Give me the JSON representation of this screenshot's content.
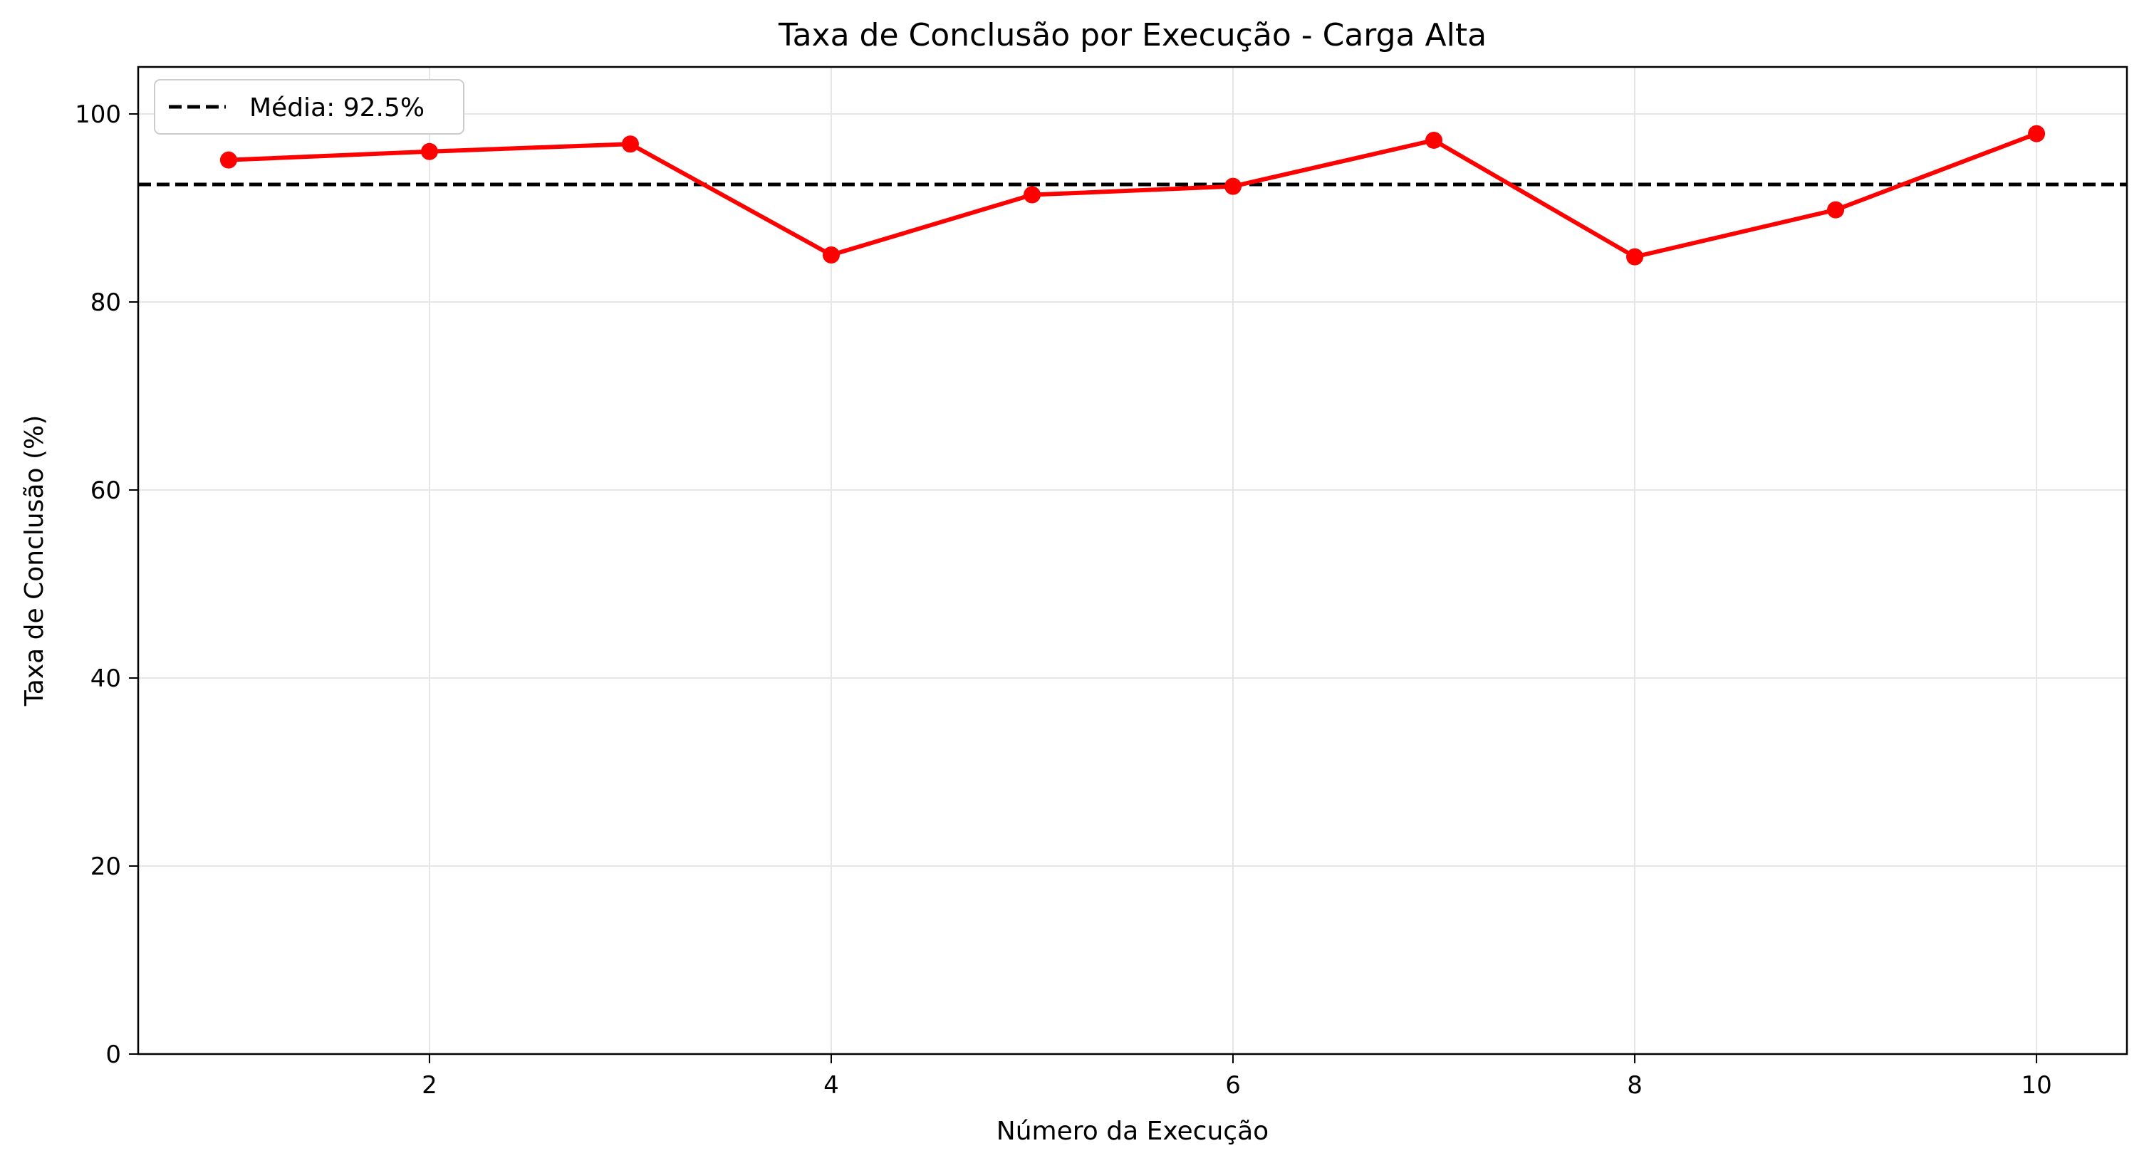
{
  "chart_data": {
    "type": "line",
    "title": "Taxa de Conclusão por Execução - Carga Alta",
    "xlabel": "Número da Execução",
    "ylabel": "Taxa de Conclusão (%)",
    "xlim": [
      0.55,
      10.45
    ],
    "ylim": [
      0,
      105
    ],
    "xticks": [
      2,
      4,
      6,
      8,
      10
    ],
    "yticks": [
      0,
      20,
      40,
      60,
      80,
      100
    ],
    "grid": true,
    "legend_position": "top-left",
    "series": [
      {
        "x": [
          1,
          2,
          3,
          4,
          5,
          6,
          7,
          8,
          9,
          10
        ],
        "values": [
          95.1,
          96.0,
          96.8,
          85.0,
          91.4,
          92.3,
          97.2,
          84.8,
          89.8,
          97.9
        ],
        "color": "#ff0000",
        "marker": "circle"
      }
    ],
    "reference_line": {
      "name": "Média: 92.5%",
      "value": 92.5,
      "color": "#000000",
      "style": "dashed"
    }
  }
}
